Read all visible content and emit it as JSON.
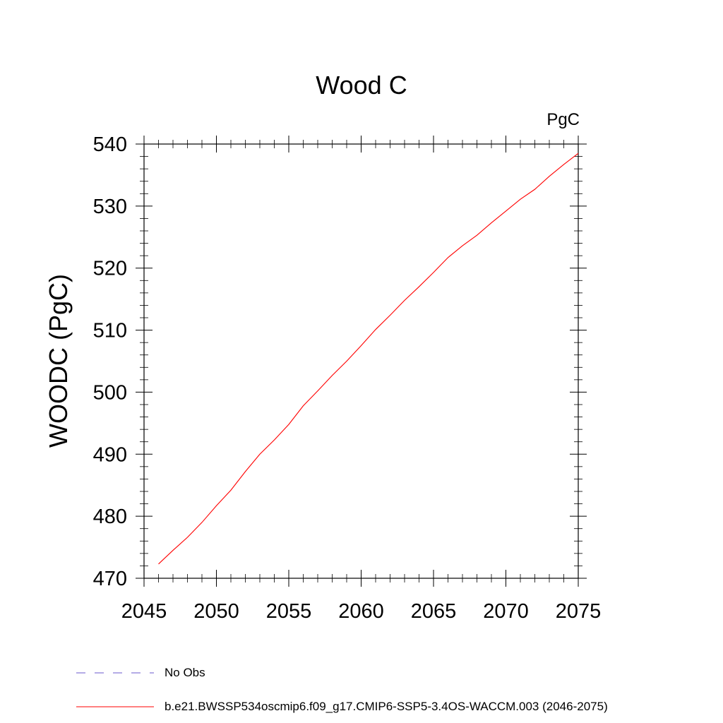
{
  "chart_data": {
    "type": "line",
    "title": "Wood C",
    "units": "PgC",
    "xlabel": "",
    "ylabel": "WOODC  (PgC)",
    "xlim": [
      2045,
      2075
    ],
    "ylim": [
      470,
      540
    ],
    "x_ticks": [
      2045,
      2050,
      2055,
      2060,
      2065,
      2070,
      2075
    ],
    "y_ticks": [
      470,
      480,
      490,
      500,
      510,
      520,
      530,
      540
    ],
    "grid": false,
    "series": [
      {
        "name": "b.e21.BWSSP534oscmip6.f09_g17.CMIP6-SSP5-3.4OS-WACCM.003 (2046-2075)",
        "color": "#ff0000",
        "x": [
          2046,
          2047,
          2048,
          2049,
          2050,
          2051,
          2052,
          2053,
          2054,
          2055,
          2056,
          2057,
          2058,
          2059,
          2060,
          2061,
          2062,
          2063,
          2064,
          2065,
          2066,
          2067,
          2068,
          2069,
          2070,
          2071,
          2072,
          2073,
          2074,
          2075
        ],
        "y": [
          472.3,
          474.5,
          476.6,
          479.0,
          481.7,
          484.2,
          487.2,
          490.0,
          492.3,
          494.8,
          497.8,
          500.2,
          502.7,
          505.0,
          507.5,
          510.1,
          512.4,
          514.8,
          517.0,
          519.3,
          521.7,
          523.6,
          525.3,
          527.3,
          529.2,
          531.1,
          532.7,
          534.8,
          536.7,
          538.5
        ]
      }
    ],
    "legend": {
      "placement": "bottom",
      "entries": [
        {
          "label": "No Obs",
          "color": "#6a5acd",
          "style": "dashed"
        },
        {
          "label": "b.e21.BWSSP534oscmip6.f09_g17.CMIP6-SSP5-3.4OS-WACCM.003 (2046-2075)",
          "color": "#ff0000",
          "style": "solid"
        }
      ]
    }
  }
}
